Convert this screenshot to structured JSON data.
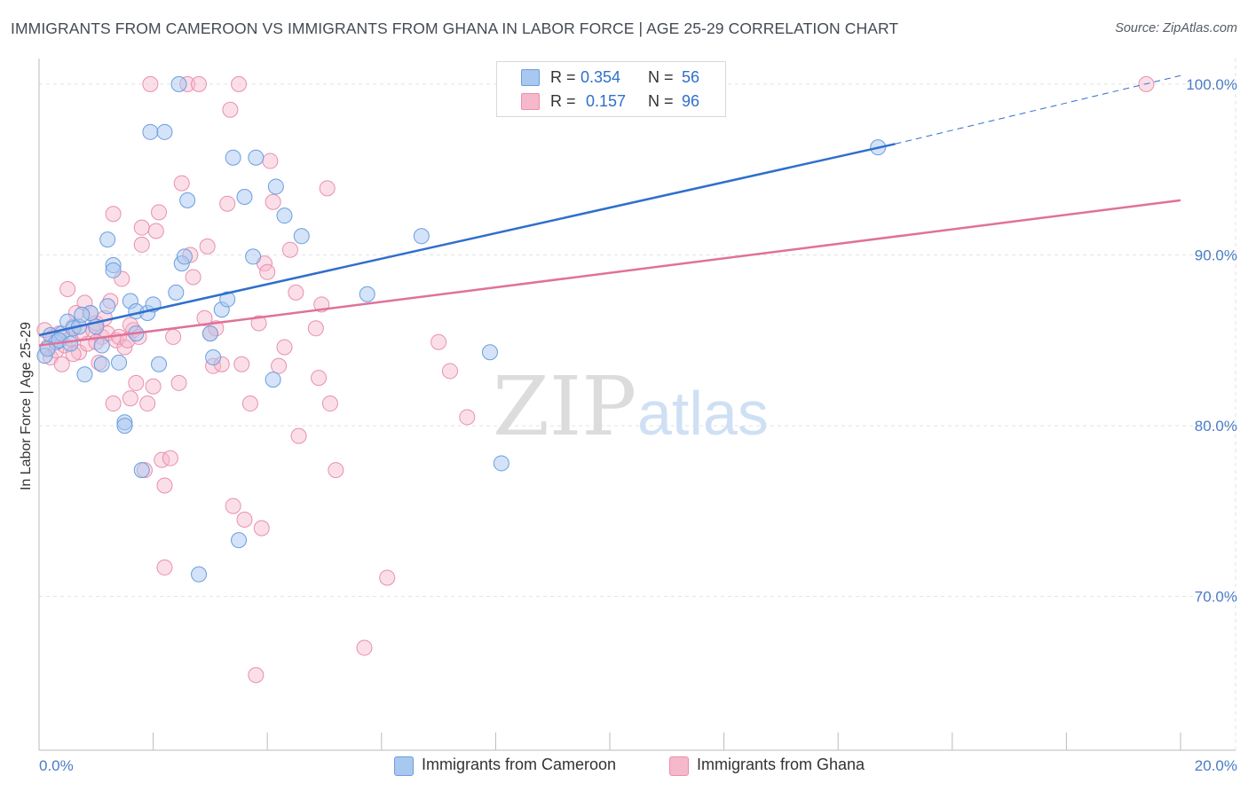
{
  "title": "IMMIGRANTS FROM CAMEROON VS IMMIGRANTS FROM GHANA IN LABOR FORCE | AGE 25-29 CORRELATION CHART",
  "source": "Source: ZipAtlas.com",
  "watermark": {
    "zip": "ZIP",
    "atlas": "atlas"
  },
  "legend": {
    "rows": [
      {
        "r_label": "R =",
        "r_value": "0.354",
        "n_label": "N =",
        "n_value": "56"
      },
      {
        "r_label": "R =",
        "r_value": "0.157",
        "n_label": "N =",
        "n_value": "96"
      }
    ]
  },
  "bottom_legend": [
    "Immigrants from Cameroon",
    "Immigrants from Ghana"
  ],
  "colors": {
    "cameroon_fill": "#a9c8f0",
    "cameroon_stroke": "#6a9ee0",
    "cameroon_line": "#2f6fcc",
    "ghana_fill": "#f6b8cb",
    "ghana_stroke": "#ea8fae",
    "ghana_line": "#e0719a",
    "tick_label": "#4a7cc7",
    "grid": "#e3e3e3"
  },
  "chart_data": {
    "type": "scatter",
    "title": "IMMIGRANTS FROM CAMEROON VS IMMIGRANTS FROM GHANA IN LABOR FORCE | AGE 25-29 CORRELATION CHART",
    "xlabel": "",
    "ylabel": "In Labor Force | Age 25-29",
    "xlim": [
      0,
      20
    ],
    "ylim": [
      61,
      101.5
    ],
    "x_tick_labels": [
      "0.0%",
      "20.0%"
    ],
    "y_ticks": [
      70,
      80,
      90,
      100
    ],
    "y_tick_labels": [
      "70.0%",
      "80.0%",
      "90.0%",
      "100.0%"
    ],
    "grid": true,
    "legend_position": "top-center",
    "series": [
      {
        "name": "Immigrants from Cameroon",
        "r": 0.354,
        "n": 56,
        "trend": {
          "x0": 0.0,
          "y0": 85.3,
          "x1": 15.0,
          "y1": 96.5,
          "dash_to_x": 20.0,
          "dash_to_y": 100.5
        },
        "points": [
          [
            0.2,
            85.3
          ],
          [
            0.3,
            84.9
          ],
          [
            0.4,
            85.4
          ],
          [
            0.5,
            86.1
          ],
          [
            0.6,
            85.7
          ],
          [
            0.7,
            85.8
          ],
          [
            0.8,
            83.0
          ],
          [
            0.9,
            86.6
          ],
          [
            1.0,
            85.8
          ],
          [
            1.1,
            83.6
          ],
          [
            1.1,
            84.7
          ],
          [
            1.2,
            87.0
          ],
          [
            1.2,
            90.9
          ],
          [
            1.3,
            89.4
          ],
          [
            1.3,
            89.1
          ],
          [
            1.4,
            83.7
          ],
          [
            1.5,
            80.2
          ],
          [
            1.5,
            80.0
          ],
          [
            1.6,
            87.3
          ],
          [
            1.7,
            86.7
          ],
          [
            1.7,
            85.4
          ],
          [
            1.8,
            77.4
          ],
          [
            1.9,
            86.6
          ],
          [
            1.95,
            97.2
          ],
          [
            2.0,
            87.1
          ],
          [
            2.1,
            83.6
          ],
          [
            2.2,
            97.2
          ],
          [
            2.4,
            87.8
          ],
          [
            2.45,
            100.0
          ],
          [
            2.5,
            89.5
          ],
          [
            2.55,
            89.9
          ],
          [
            2.6,
            93.2
          ],
          [
            2.8,
            71.3
          ],
          [
            3.0,
            85.4
          ],
          [
            3.05,
            84.0
          ],
          [
            3.2,
            86.8
          ],
          [
            3.3,
            87.4
          ],
          [
            3.4,
            95.7
          ],
          [
            3.5,
            73.3
          ],
          [
            3.6,
            93.4
          ],
          [
            3.75,
            89.9
          ],
          [
            3.8,
            95.7
          ],
          [
            4.1,
            82.7
          ],
          [
            4.15,
            94.0
          ],
          [
            4.3,
            92.3
          ],
          [
            4.6,
            91.1
          ],
          [
            5.75,
            87.7
          ],
          [
            6.7,
            91.1
          ],
          [
            7.9,
            84.3
          ],
          [
            8.1,
            77.8
          ],
          [
            14.7,
            96.3
          ],
          [
            0.1,
            84.1
          ],
          [
            0.15,
            84.5
          ],
          [
            0.35,
            85.0
          ],
          [
            0.55,
            84.8
          ],
          [
            0.75,
            86.5
          ]
        ]
      },
      {
        "name": "Immigrants from Ghana",
        "r": 0.157,
        "n": 96,
        "trend": {
          "x0": 0.0,
          "y0": 84.7,
          "x1": 20.0,
          "y1": 93.2
        },
        "points": [
          [
            0.1,
            85.6
          ],
          [
            0.15,
            84.6
          ],
          [
            0.2,
            84.0
          ],
          [
            0.25,
            85.2
          ],
          [
            0.3,
            84.4
          ],
          [
            0.35,
            85.4
          ],
          [
            0.4,
            83.6
          ],
          [
            0.45,
            84.7
          ],
          [
            0.5,
            88.0
          ],
          [
            0.55,
            85.1
          ],
          [
            0.6,
            85.8
          ],
          [
            0.65,
            86.6
          ],
          [
            0.7,
            84.3
          ],
          [
            0.75,
            85.5
          ],
          [
            0.8,
            87.2
          ],
          [
            0.85,
            84.8
          ],
          [
            0.9,
            86.6
          ],
          [
            0.95,
            85.6
          ],
          [
            1.0,
            86.0
          ],
          [
            1.05,
            83.7
          ],
          [
            1.1,
            85.2
          ],
          [
            1.15,
            86.3
          ],
          [
            1.2,
            85.4
          ],
          [
            1.25,
            87.3
          ],
          [
            1.3,
            92.4
          ],
          [
            1.3,
            81.3
          ],
          [
            1.35,
            85.0
          ],
          [
            1.4,
            85.2
          ],
          [
            1.45,
            88.6
          ],
          [
            1.5,
            84.6
          ],
          [
            1.55,
            85.0
          ],
          [
            1.6,
            81.6
          ],
          [
            1.65,
            85.6
          ],
          [
            1.7,
            82.5
          ],
          [
            1.75,
            85.2
          ],
          [
            1.8,
            91.6
          ],
          [
            1.8,
            90.6
          ],
          [
            1.85,
            77.4
          ],
          [
            1.9,
            81.3
          ],
          [
            1.95,
            100.0
          ],
          [
            2.0,
            82.3
          ],
          [
            2.05,
            91.4
          ],
          [
            2.1,
            92.5
          ],
          [
            2.15,
            78.0
          ],
          [
            2.2,
            76.5
          ],
          [
            2.2,
            71.7
          ],
          [
            2.3,
            78.1
          ],
          [
            2.35,
            85.2
          ],
          [
            2.45,
            82.5
          ],
          [
            2.5,
            94.2
          ],
          [
            2.6,
            100.0
          ],
          [
            2.65,
            90.0
          ],
          [
            2.7,
            88.7
          ],
          [
            2.8,
            100.0
          ],
          [
            2.9,
            86.3
          ],
          [
            2.95,
            90.5
          ],
          [
            3.0,
            85.4
          ],
          [
            3.05,
            83.5
          ],
          [
            3.1,
            85.7
          ],
          [
            3.2,
            83.6
          ],
          [
            3.3,
            93.0
          ],
          [
            3.35,
            98.5
          ],
          [
            3.4,
            75.3
          ],
          [
            3.5,
            100.0
          ],
          [
            3.55,
            83.6
          ],
          [
            3.6,
            74.5
          ],
          [
            3.7,
            81.3
          ],
          [
            3.8,
            65.4
          ],
          [
            3.85,
            86.0
          ],
          [
            3.9,
            74.0
          ],
          [
            3.95,
            89.5
          ],
          [
            4.0,
            89.0
          ],
          [
            4.05,
            95.5
          ],
          [
            4.1,
            93.1
          ],
          [
            4.2,
            83.5
          ],
          [
            4.3,
            84.6
          ],
          [
            4.4,
            90.3
          ],
          [
            4.5,
            87.8
          ],
          [
            4.55,
            79.4
          ],
          [
            4.85,
            85.7
          ],
          [
            4.9,
            82.8
          ],
          [
            4.95,
            87.1
          ],
          [
            5.05,
            93.9
          ],
          [
            5.1,
            81.3
          ],
          [
            5.2,
            77.4
          ],
          [
            5.7,
            67.0
          ],
          [
            6.1,
            71.1
          ],
          [
            7.0,
            84.9
          ],
          [
            7.2,
            83.2
          ],
          [
            7.5,
            80.5
          ],
          [
            8.3,
            100.0
          ],
          [
            8.5,
            100.0
          ],
          [
            19.4,
            100.0
          ],
          [
            1.0,
            84.9
          ],
          [
            1.6,
            85.9
          ],
          [
            0.6,
            84.2
          ]
        ]
      }
    ]
  }
}
